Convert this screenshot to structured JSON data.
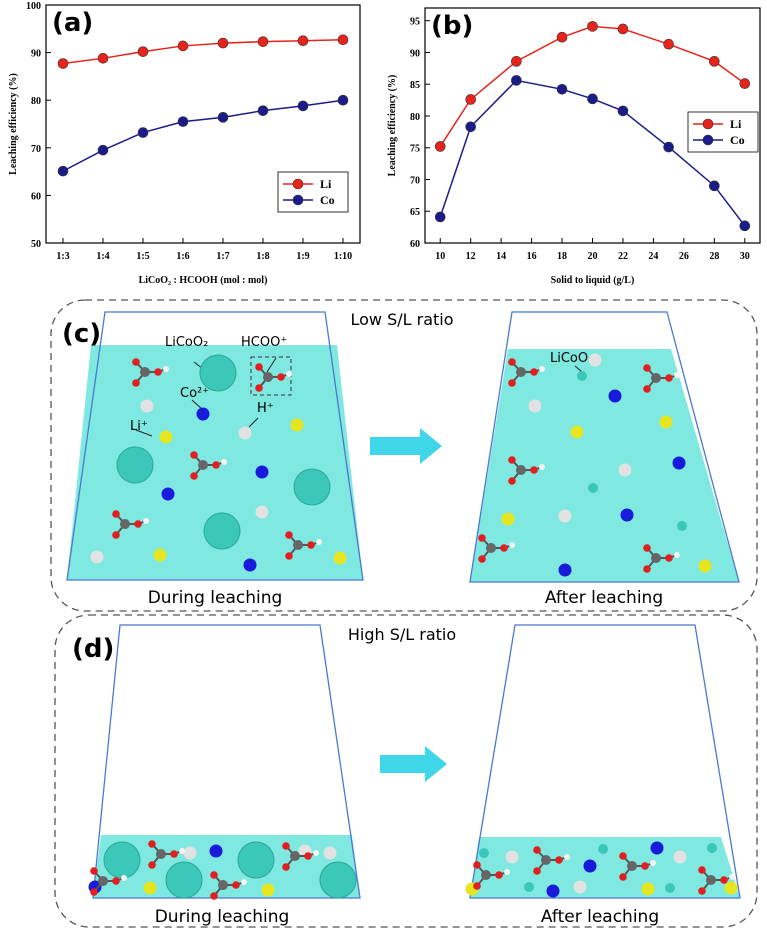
{
  "chart_data": [
    {
      "type": "line",
      "panel_label": "(a)",
      "x_label": "LiCoO₂ : HCOOH (mol : mol)",
      "y_label": "Leaching efficiency (%)",
      "categories": [
        "1:3",
        "1:4",
        "1:5",
        "1:6",
        "1:7",
        "1:8",
        "1:9",
        "1:10"
      ],
      "series": [
        {
          "name": "Li",
          "color": "#e8231c",
          "values": [
            87.7,
            88.8,
            90.2,
            91.4,
            92.0,
            92.3,
            92.5,
            92.7
          ]
        },
        {
          "name": "Co",
          "color": "#1b1b8a",
          "values": [
            65.1,
            69.5,
            73.2,
            75.5,
            76.4,
            77.8,
            78.8,
            80.0
          ]
        }
      ],
      "ylim": [
        50,
        100
      ],
      "yticks": [
        50,
        60,
        70,
        80,
        90,
        100
      ],
      "legend": "right"
    },
    {
      "type": "line",
      "panel_label": "(b)",
      "x_label": "Solid to liquid (g/L)",
      "y_label": "Leaching efficiency (%)",
      "x": [
        10,
        12,
        15,
        18,
        20,
        22,
        25,
        28,
        30
      ],
      "series": [
        {
          "name": "Li",
          "color": "#e8231c",
          "values": [
            75.2,
            82.6,
            88.6,
            92.4,
            94.1,
            93.7,
            91.3,
            88.6,
            85.1
          ]
        },
        {
          "name": "Co",
          "color": "#1b1b8a",
          "values": [
            64.1,
            78.3,
            85.6,
            84.2,
            82.7,
            80.8,
            75.1,
            69.0,
            62.7
          ]
        }
      ],
      "xlim": [
        9,
        31
      ],
      "xticks": [
        10,
        12,
        14,
        16,
        18,
        20,
        22,
        24,
        26,
        28,
        30
      ],
      "ylim": [
        60,
        97
      ],
      "yticks": [
        60,
        65,
        70,
        75,
        80,
        85,
        90,
        95
      ],
      "legend": "right"
    }
  ],
  "diagrams": [
    {
      "label": "(c)",
      "title": "Low S/L ratio",
      "left_caption": "During leaching",
      "right_caption": "After leaching",
      "annotations": [
        "LiCoO₂",
        "HCOO⁺",
        "Co²⁺",
        "H⁺",
        "Li⁺",
        "LiCoO₂"
      ]
    },
    {
      "label": "(d)",
      "title": "High S/L ratio",
      "left_caption": "During leaching",
      "right_caption": "After leaching"
    }
  ]
}
